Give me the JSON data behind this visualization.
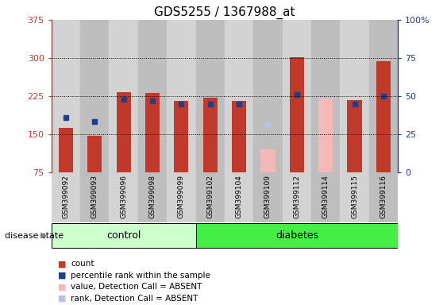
{
  "title": "GDS5255 / 1367988_at",
  "samples": [
    "GSM399092",
    "GSM399093",
    "GSM399096",
    "GSM399098",
    "GSM399099",
    "GSM399102",
    "GSM399104",
    "GSM399109",
    "GSM399112",
    "GSM399114",
    "GSM399115",
    "GSM399116"
  ],
  "groups": [
    "control",
    "control",
    "control",
    "control",
    "control",
    "diabetes",
    "diabetes",
    "diabetes",
    "diabetes",
    "diabetes",
    "diabetes",
    "diabetes"
  ],
  "red_bars": [
    163,
    147,
    232,
    231,
    215,
    222,
    215,
    null,
    302,
    null,
    217,
    294
  ],
  "blue_markers": [
    183,
    175,
    218,
    215,
    210,
    210,
    210,
    null,
    228,
    null,
    210,
    225
  ],
  "pink_bars": [
    null,
    null,
    null,
    null,
    null,
    null,
    null,
    120,
    null,
    220,
    null,
    null
  ],
  "lavender_markers": [
    null,
    null,
    null,
    null,
    null,
    null,
    null,
    168,
    null,
    null,
    null,
    null
  ],
  "ymin": 75,
  "ymax": 375,
  "yticks": [
    75,
    150,
    225,
    300,
    375
  ],
  "y2min": 0,
  "y2max": 100,
  "y2ticks": [
    0,
    25,
    50,
    75,
    100
  ],
  "bar_width": 0.5,
  "red_color": "#C0392B",
  "blue_color": "#1F3E8C",
  "pink_color": "#F4B8B8",
  "lavender_color": "#B8C0E8",
  "control_color_light": "#CCFFCC",
  "diabetes_color_bright": "#44EE44",
  "title_fontsize": 11,
  "legend_items": [
    "count",
    "percentile rank within the sample",
    "value, Detection Call = ABSENT",
    "rank, Detection Call = ABSENT"
  ],
  "legend_colors": [
    "#C0392B",
    "#1F3E8C",
    "#F4B8B8",
    "#B8C0E8"
  ],
  "n_control": 5,
  "n_diabetes": 7
}
